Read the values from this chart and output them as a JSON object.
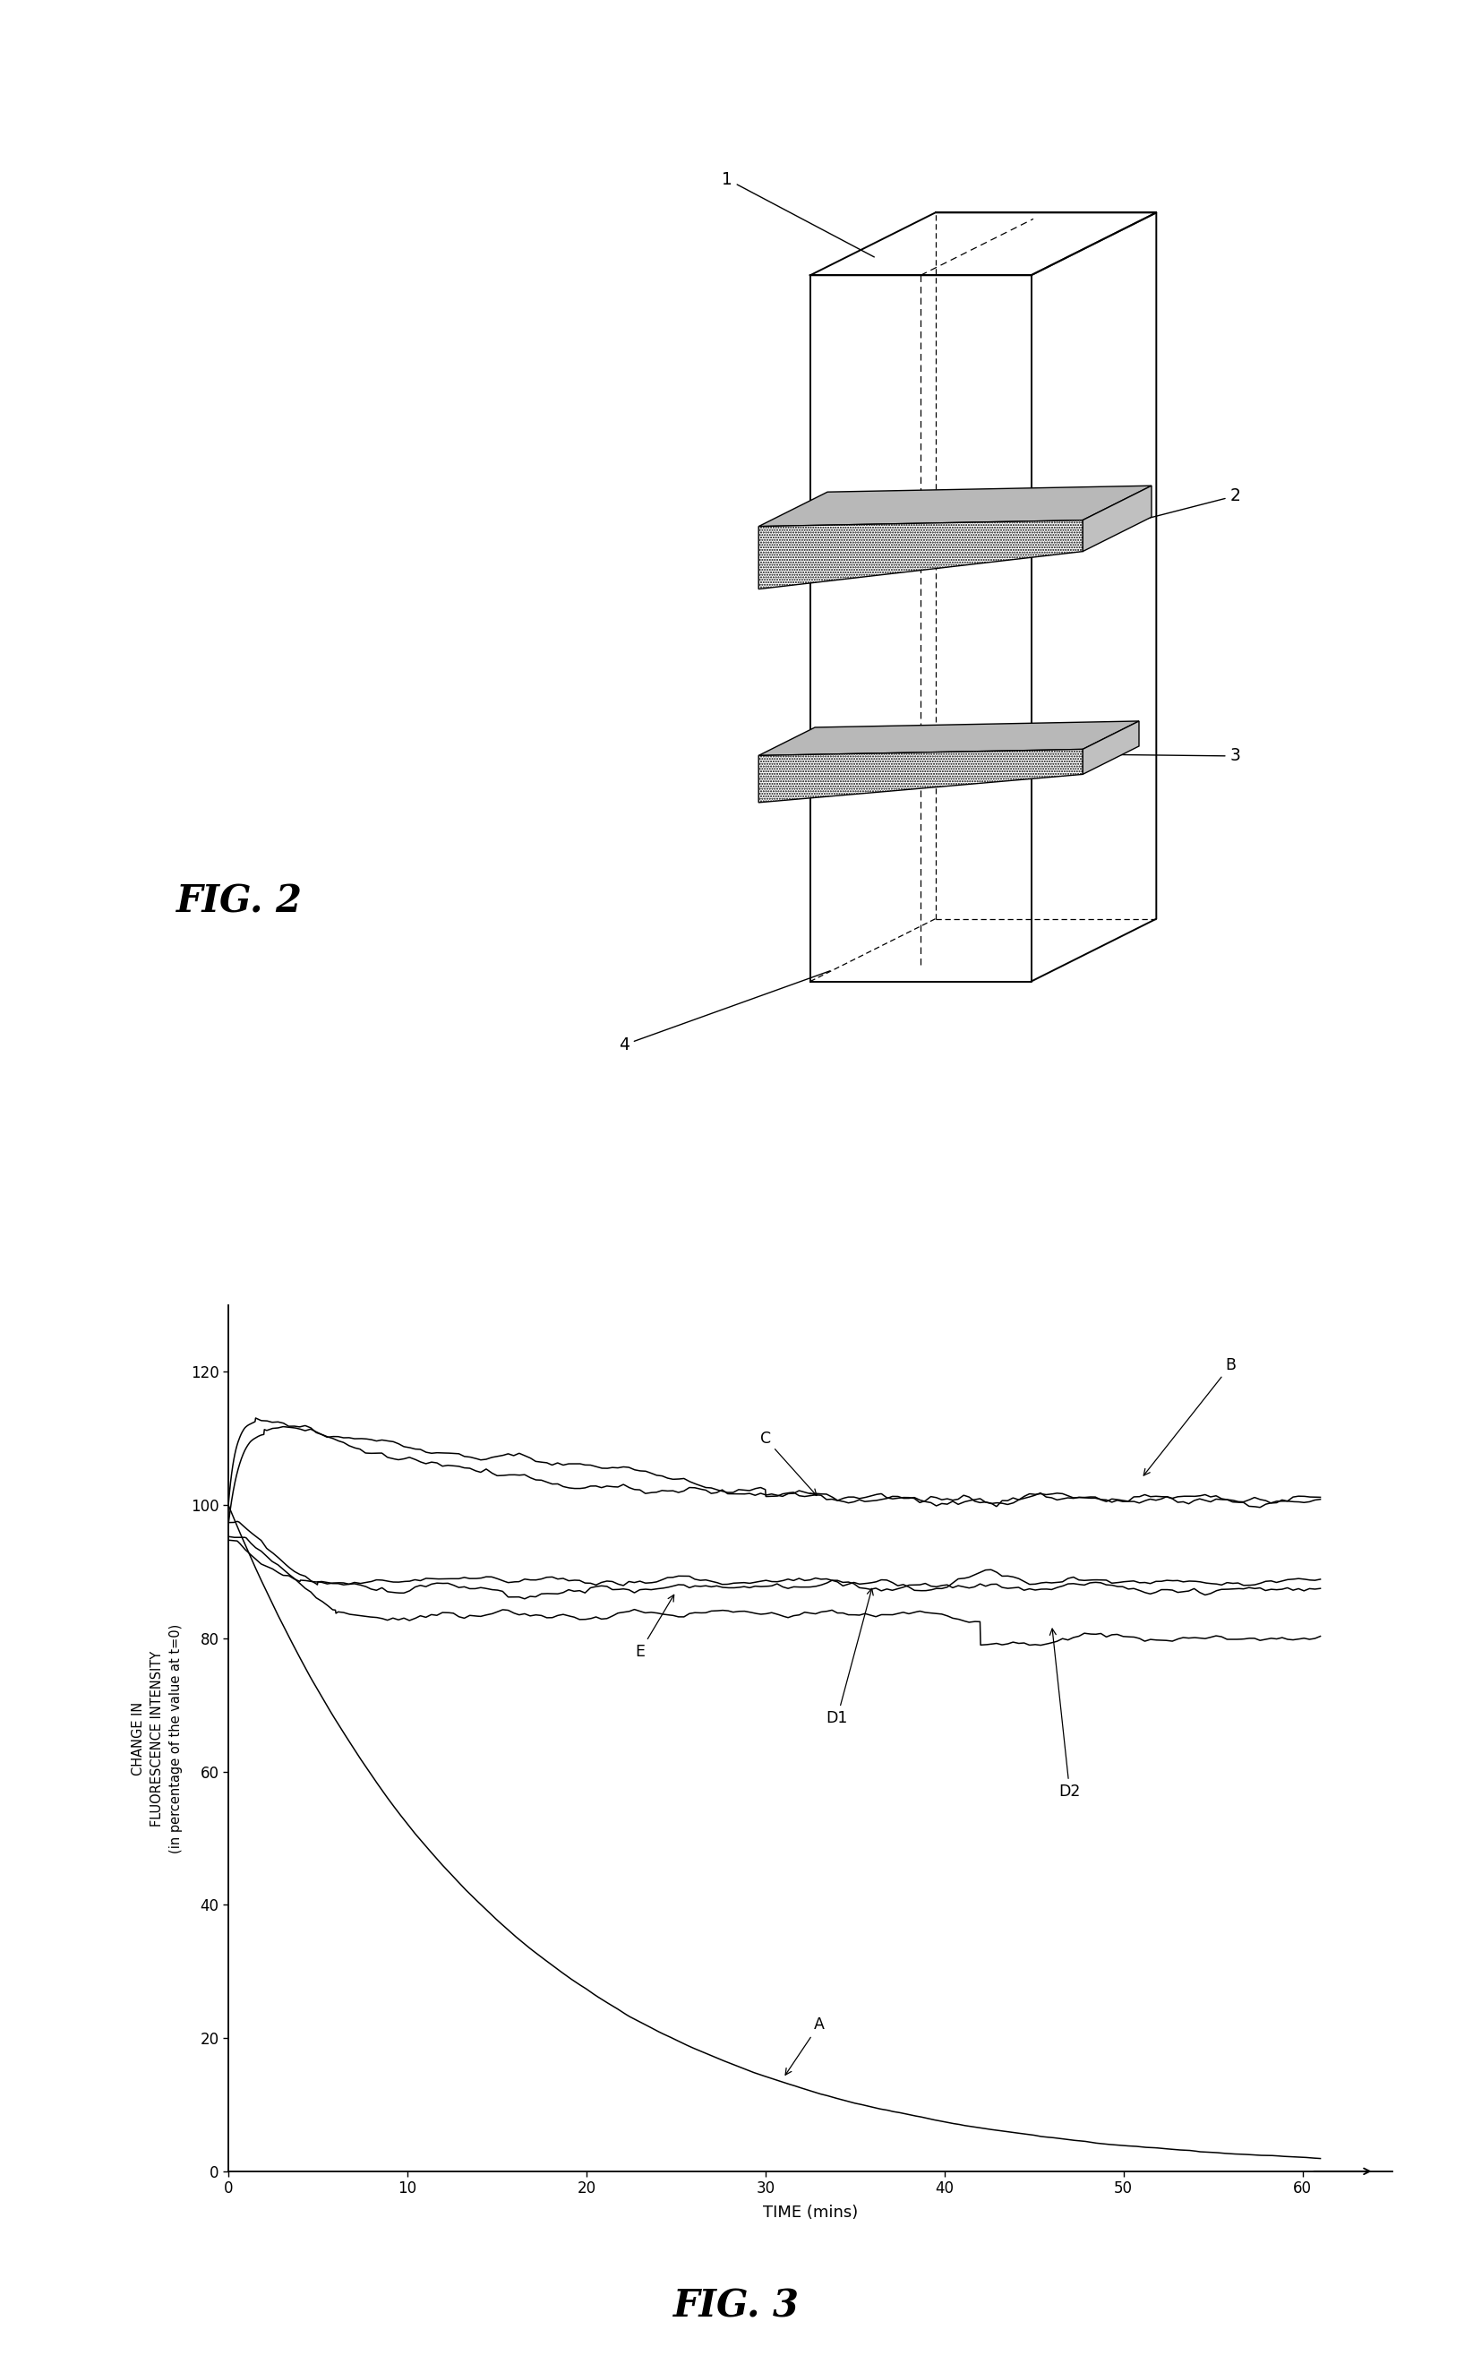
{
  "fig_width": 16.45,
  "fig_height": 26.49,
  "background_color": "#ffffff",
  "fig2_label": "FIG. 2",
  "fig3_label": "FIG. 3",
  "xlabel": "TIME (mins)",
  "ylabel_line1": "CHANGE IN",
  "ylabel_line2": "FLUORESCENCE INTENSITY",
  "ylabel_line3": "(in percentage of the value at t=0)",
  "xlim": [
    0,
    65
  ],
  "ylim": [
    0,
    130
  ],
  "xticks": [
    0,
    10,
    20,
    30,
    40,
    50,
    60
  ],
  "yticks": [
    0,
    20,
    40,
    60,
    80,
    100,
    120
  ],
  "curve_color": "#000000",
  "curve_lw": 1.1
}
